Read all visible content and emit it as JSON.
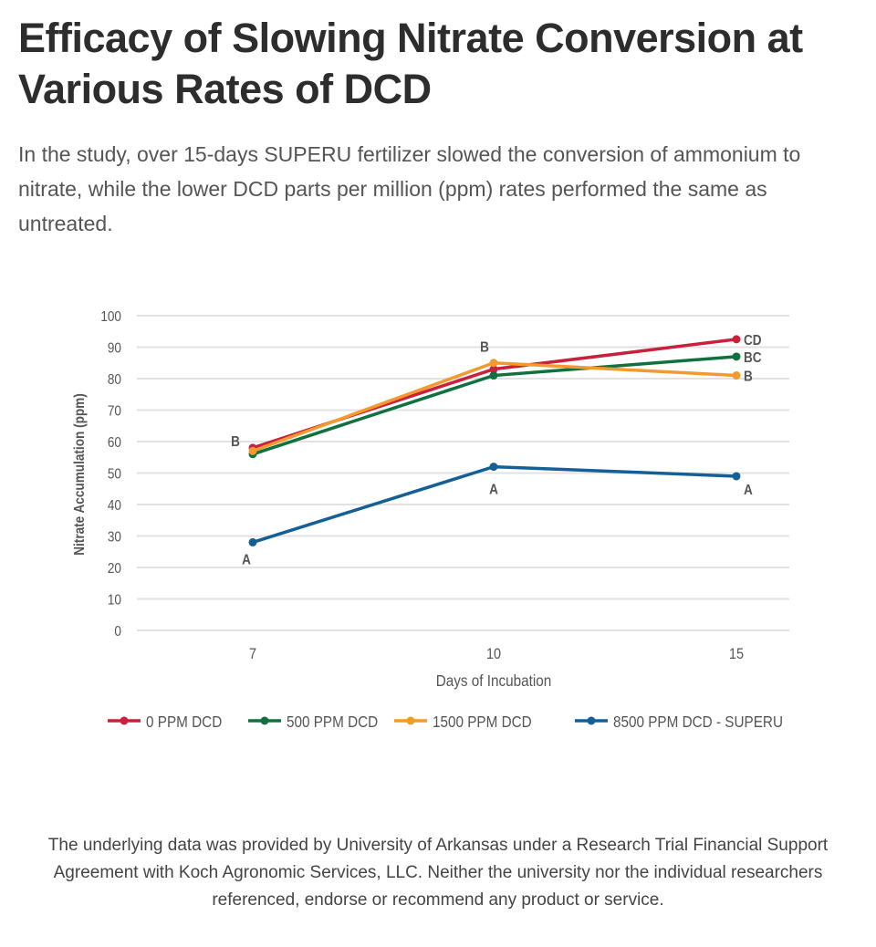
{
  "title": "Efficacy of Slowing Nitrate Conversion at Various Rates of DCD",
  "subtitle": "In the study, over 15-days SUPERU fertilizer slowed the conversion of ammonium to nitrate, while the lower DCD parts per million (ppm) rates performed the same as untreated.",
  "footnote": "The underlying data was provided by University of Arkansas under a Research Trial Financial Support Agreement with Koch Agronomic Services, LLC. Neither the university nor the individual researchers referenced, endorse or recommend any product or service.",
  "chart_data": {
    "type": "line",
    "xlabel": "Days of Incubation",
    "ylabel": "Nitrate Accumulation (ppm)",
    "categories": [
      "7",
      "10",
      "15"
    ],
    "ylim": [
      0,
      100
    ],
    "yticks": [
      0,
      10,
      20,
      30,
      40,
      50,
      60,
      70,
      80,
      90,
      100
    ],
    "grid": true,
    "legend": "bottom",
    "series": [
      {
        "name": "0 PPM DCD",
        "color": "#c8203d",
        "values": [
          58,
          83,
          92.5
        ]
      },
      {
        "name": "500 PPM DCD",
        "color": "#11703f",
        "values": [
          56,
          81,
          87
        ]
      },
      {
        "name": "1500 PPM DCD",
        "color": "#f29a2e",
        "values": [
          57,
          85,
          81
        ]
      },
      {
        "name": "8500 PPM DCD - SUPERU",
        "color": "#135f96",
        "values": [
          28,
          52,
          49
        ]
      }
    ],
    "annotations": [
      {
        "text": "B",
        "x": "7",
        "y": 58
      },
      {
        "text": "A",
        "x": "7",
        "y": 28
      },
      {
        "text": "B",
        "x": "10",
        "y": 85
      },
      {
        "text": "A",
        "x": "10",
        "y": 52
      },
      {
        "text": "CD",
        "x": "15",
        "y": 92.5
      },
      {
        "text": "BC",
        "x": "15",
        "y": 87
      },
      {
        "text": "B",
        "x": "15",
        "y": 81
      },
      {
        "text": "A",
        "x": "15",
        "y": 49
      }
    ]
  }
}
